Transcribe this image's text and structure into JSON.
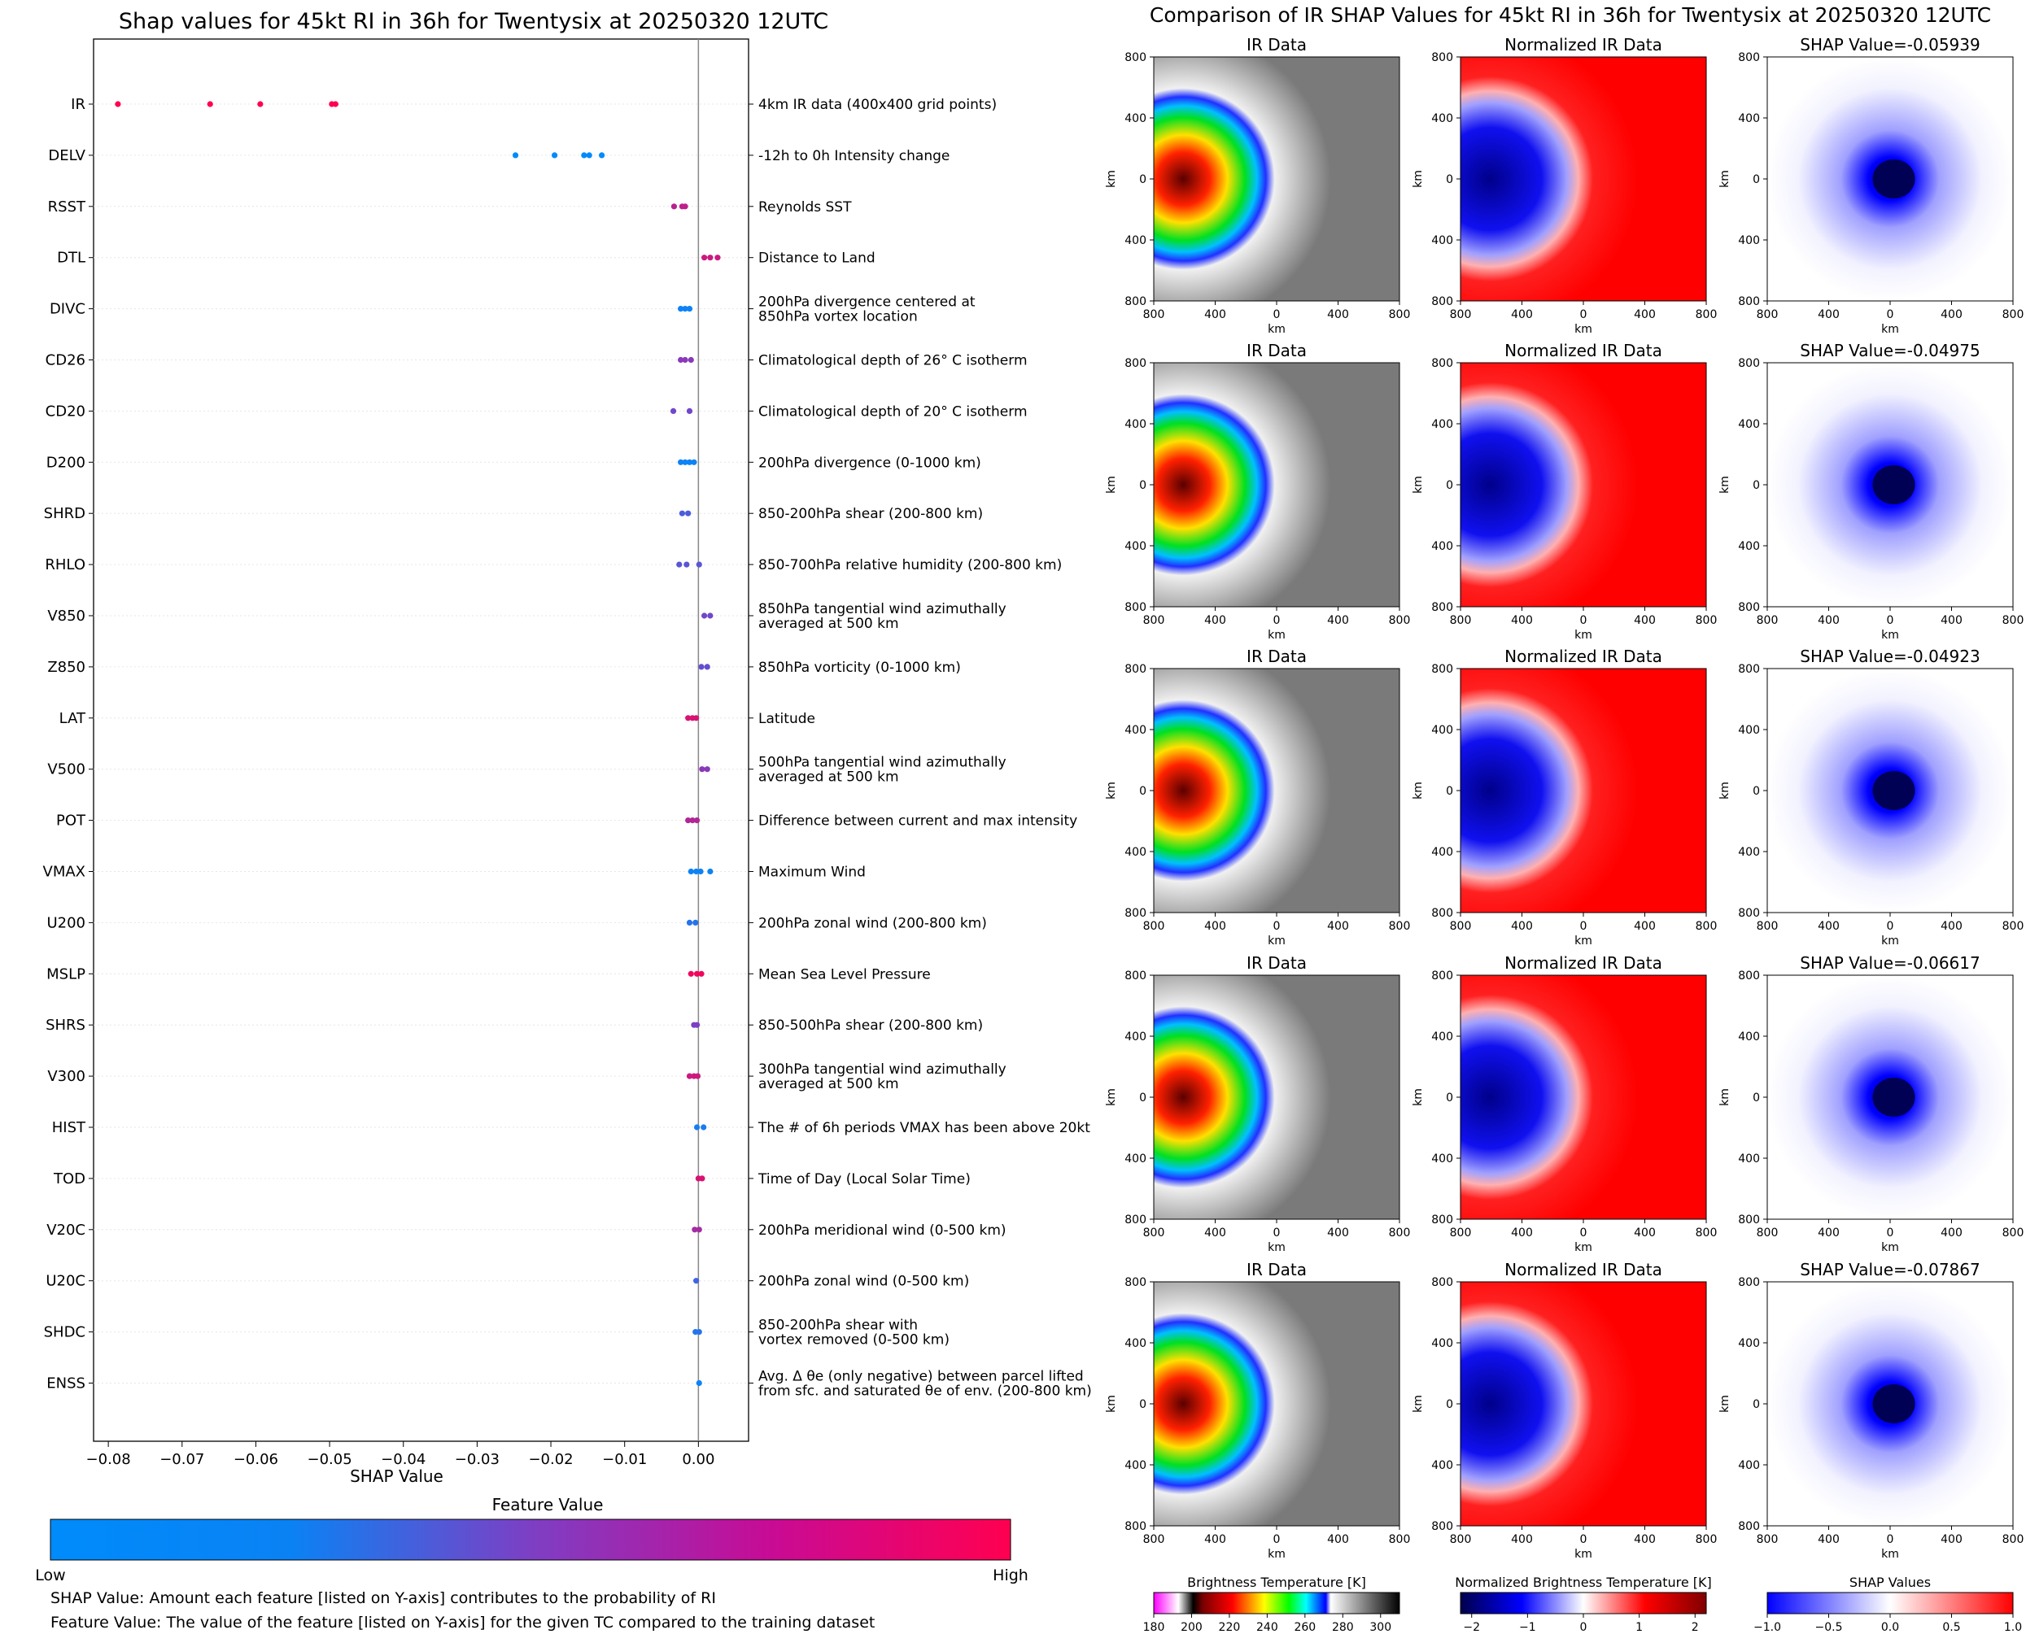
{
  "left_title": "Shap values for 45kt RI in 36h for Twentysix at 20250320 12UTC",
  "right_title": "Comparison of IR SHAP Values for 45kt RI in 36h for Twentysix at 20250320 12UTC",
  "colorbar": {
    "title": "Feature Value",
    "low": "Low",
    "high": "High",
    "colors": [
      "#008bfb",
      "#7d3fc4",
      "#ff0051"
    ]
  },
  "notes": {
    "shap": "SHAP Value: Amount each feature [listed on Y-axis] contributes to the probability of RI",
    "feature": "Feature Value: The value of the feature [listed on Y-axis] for the given TC compared to the training dataset"
  },
  "chart_data": [
    {
      "type": "scatter",
      "title": "Shap values for 45kt RI in 36h for Twentysix at 20250320 12UTC",
      "xlabel": "SHAP Value",
      "xlim": [
        -0.082,
        0.0068
      ],
      "xticks": [
        -0.08,
        -0.07,
        -0.06,
        -0.05,
        -0.04,
        -0.03,
        -0.02,
        -0.01,
        0.0
      ],
      "xtick_labels": [
        "−0.08",
        "−0.07",
        "−0.06",
        "−0.05",
        "−0.04",
        "−0.03",
        "−0.02",
        "−0.01",
        "0.00"
      ],
      "vline": 0.0,
      "features": [
        {
          "name": "IR",
          "desc": [
            "4km IR data (400x400 grid points)"
          ],
          "points": [
            [
              -0.0787,
              1.0
            ],
            [
              -0.0662,
              1.0
            ],
            [
              -0.0594,
              1.0
            ],
            [
              -0.0497,
              1.0
            ],
            [
              -0.0492,
              1.0
            ]
          ]
        },
        {
          "name": "DELV",
          "desc": [
            "-12h to 0h Intensity change"
          ],
          "points": [
            [
              -0.0248,
              0.0
            ],
            [
              -0.0195,
              0.0
            ],
            [
              -0.0155,
              0.0
            ],
            [
              -0.0148,
              0.0
            ],
            [
              -0.0131,
              0.0
            ]
          ]
        },
        {
          "name": "RSST",
          "desc": [
            "Reynolds SST"
          ],
          "points": [
            [
              -0.0033,
              0.72
            ],
            [
              -0.0022,
              0.75
            ],
            [
              -0.0018,
              0.75
            ]
          ]
        },
        {
          "name": "DTL",
          "desc": [
            "Distance to Land"
          ],
          "points": [
            [
              0.0008,
              0.8
            ],
            [
              0.0016,
              0.8
            ],
            [
              0.0026,
              0.8
            ]
          ]
        },
        {
          "name": "DIVC",
          "desc": [
            "200hPa divergence centered at",
            "850hPa vortex location"
          ],
          "points": [
            [
              -0.0024,
              0.05
            ],
            [
              -0.0018,
              0.05
            ],
            [
              -0.0012,
              0.05
            ]
          ]
        },
        {
          "name": "CD26",
          "desc": [
            "Climatological depth of 26° C isotherm"
          ],
          "points": [
            [
              -0.0024,
              0.55
            ],
            [
              -0.0018,
              0.55
            ],
            [
              -0.001,
              0.55
            ]
          ]
        },
        {
          "name": "CD20",
          "desc": [
            "Climatological depth of 20° C isotherm"
          ],
          "points": [
            [
              -0.0034,
              0.45
            ],
            [
              -0.0012,
              0.45
            ]
          ]
        },
        {
          "name": "D200",
          "desc": [
            "200hPa divergence (0-1000 km)"
          ],
          "points": [
            [
              -0.0024,
              0.05
            ],
            [
              -0.0018,
              0.05
            ],
            [
              -0.0012,
              0.05
            ],
            [
              -0.0006,
              0.05
            ]
          ]
        },
        {
          "name": "SHRD",
          "desc": [
            "850-200hPa shear (200-800 km)"
          ],
          "points": [
            [
              -0.0022,
              0.3
            ],
            [
              -0.0014,
              0.3
            ]
          ]
        },
        {
          "name": "RHLO",
          "desc": [
            "850-700hPa relative humidity (200-800 km)"
          ],
          "points": [
            [
              -0.0026,
              0.35
            ],
            [
              -0.0016,
              0.35
            ],
            [
              0.0001,
              0.35
            ]
          ]
        },
        {
          "name": "V850",
          "desc": [
            "850hPa tangential wind azimuthally",
            "averaged at 500 km"
          ],
          "points": [
            [
              0.0008,
              0.45
            ],
            [
              0.0016,
              0.45
            ]
          ]
        },
        {
          "name": "Z850",
          "desc": [
            "850hPa vorticity (0-1000 km)"
          ],
          "points": [
            [
              0.0004,
              0.4
            ],
            [
              0.0012,
              0.4
            ]
          ]
        },
        {
          "name": "LAT",
          "desc": [
            "Latitude"
          ],
          "points": [
            [
              -0.0014,
              0.85
            ],
            [
              -0.0008,
              0.85
            ],
            [
              -0.0003,
              0.85
            ]
          ]
        },
        {
          "name": "V500",
          "desc": [
            "500hPa tangential wind azimuthally",
            "averaged at 500 km"
          ],
          "points": [
            [
              0.0005,
              0.55
            ],
            [
              0.0012,
              0.55
            ]
          ]
        },
        {
          "name": "POT",
          "desc": [
            "Difference between current and max intensity"
          ],
          "points": [
            [
              -0.0014,
              0.7
            ],
            [
              -0.0008,
              0.7
            ],
            [
              -0.0002,
              0.7
            ]
          ]
        },
        {
          "name": "VMAX",
          "desc": [
            "Maximum Wind"
          ],
          "points": [
            [
              -0.001,
              0.05
            ],
            [
              -0.0003,
              0.05
            ],
            [
              0.0003,
              0.05
            ],
            [
              0.0016,
              0.05
            ]
          ]
        },
        {
          "name": "U200",
          "desc": [
            "200hPa zonal wind (200-800 km)"
          ],
          "points": [
            [
              -0.0012,
              0.15
            ],
            [
              -0.0004,
              0.15
            ]
          ]
        },
        {
          "name": "MSLP",
          "desc": [
            "Mean Sea Level Pressure"
          ],
          "points": [
            [
              -0.001,
              0.95
            ],
            [
              -0.0002,
              0.95
            ],
            [
              0.0004,
              0.95
            ]
          ]
        },
        {
          "name": "SHRS",
          "desc": [
            "850-500hPa shear (200-800 km)"
          ],
          "points": [
            [
              -0.0006,
              0.5
            ],
            [
              -0.0002,
              0.5
            ]
          ]
        },
        {
          "name": "V300",
          "desc": [
            "300hPa tangential wind azimuthally",
            "averaged at 500 km"
          ],
          "points": [
            [
              -0.0012,
              0.8
            ],
            [
              -0.0006,
              0.8
            ],
            [
              -0.0001,
              0.8
            ]
          ]
        },
        {
          "name": "HIST",
          "desc": [
            "The # of 6h periods VMAX has been above 20kt"
          ],
          "points": [
            [
              -0.0002,
              0.1
            ],
            [
              0.0007,
              0.1
            ]
          ]
        },
        {
          "name": "TOD",
          "desc": [
            "Time of Day (Local Solar Time)"
          ],
          "points": [
            [
              0.0,
              0.85
            ],
            [
              0.0005,
              0.85
            ]
          ]
        },
        {
          "name": "V20C",
          "desc": [
            "200hPa meridional wind (0-500 km)"
          ],
          "points": [
            [
              -0.0005,
              0.65
            ],
            [
              0.0001,
              0.65
            ]
          ]
        },
        {
          "name": "U20C",
          "desc": [
            "200hPa zonal wind (0-500 km)"
          ],
          "points": [
            [
              -0.0003,
              0.25
            ]
          ]
        },
        {
          "name": "SHDC",
          "desc": [
            "850-200hPa shear with",
            "vortex removed (0-500 km)"
          ],
          "points": [
            [
              -0.0004,
              0.15
            ],
            [
              0.0001,
              0.15
            ]
          ]
        },
        {
          "name": "ENSS",
          "desc": [
            "Avg. Δ θe (only negative) between parcel lifted",
            "from sfc. and saturated θe of env. (200-800 km)"
          ],
          "points": [
            [
              0.0001,
              0.05
            ]
          ]
        }
      ]
    },
    {
      "type": "heatmap",
      "title": "Comparison of IR SHAP Values for 45kt RI in 36h for Twentysix at 20250320 12UTC",
      "column_titles": [
        "IR Data",
        "Normalized IR Data",
        ""
      ],
      "shap_titles": [
        "SHAP Value=-0.05939",
        "SHAP Value=-0.04975",
        "SHAP Value=-0.04923",
        "SHAP Value=-0.06617",
        "SHAP Value=-0.07867"
      ],
      "axis_label": "km",
      "tick_labels": [
        "800",
        "400",
        "0",
        "400",
        "800"
      ],
      "colorbars": [
        {
          "label": "Brightness Temperature [K]",
          "ticks": [
            "180",
            "200",
            "220",
            "240",
            "260",
            "280",
            "300"
          ],
          "range": [
            180,
            310
          ]
        },
        {
          "label": "Normalized Brightness Temperature [K]",
          "ticks": [
            "−2",
            "−1",
            "0",
            "1",
            "2"
          ],
          "range": [
            -2.2,
            2.2
          ]
        },
        {
          "label": "SHAP Values",
          "ticks": [
            "−1.0",
            "−0.5",
            "0.0",
            "0.5",
            "1.0"
          ],
          "range": [
            -1.0,
            1.0
          ],
          "offset": "1e−5"
        }
      ]
    }
  ]
}
